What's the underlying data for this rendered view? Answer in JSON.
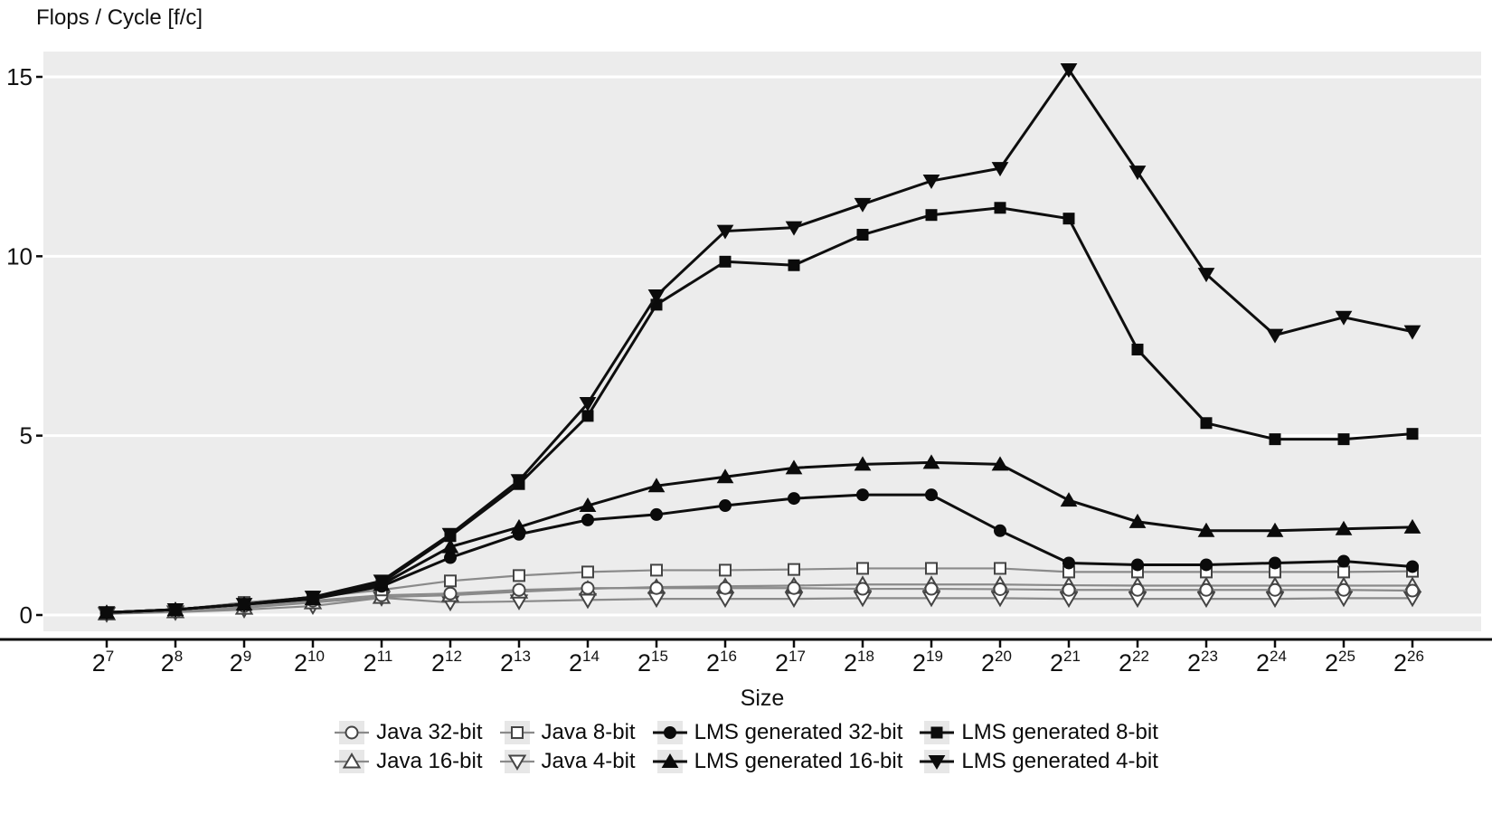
{
  "title": "Flops / Cycle [f/c]",
  "chart_data": {
    "type": "line",
    "title": "Flops / Cycle [f/c]",
    "ylabel": "Flops / Cycle [f/c]",
    "xlabel": "Size",
    "x_tick_base": "2",
    "x_exponents": [
      7,
      8,
      9,
      10,
      11,
      12,
      13,
      14,
      15,
      16,
      17,
      18,
      19,
      20,
      21,
      22,
      23,
      24,
      25,
      26
    ],
    "y_gridlines": [
      0,
      5,
      10,
      15
    ],
    "ylim": [
      0,
      15.7
    ],
    "grid": "white horizontal gridlines on light gray panel",
    "legend_position": "bottom, two centered rows",
    "series": [
      {
        "name": "Java 32-bit",
        "marker": "circle",
        "filled": false,
        "values": [
          0.05,
          0.1,
          0.25,
          0.4,
          0.55,
          0.6,
          0.7,
          0.75,
          0.75,
          0.75,
          0.75,
          0.73,
          0.73,
          0.72,
          0.7,
          0.7,
          0.7,
          0.7,
          0.7,
          0.68
        ]
      },
      {
        "name": "Java 8-bit",
        "marker": "square",
        "filled": false,
        "values": [
          0.05,
          0.15,
          0.35,
          0.5,
          0.7,
          0.95,
          1.1,
          1.2,
          1.25,
          1.25,
          1.27,
          1.3,
          1.3,
          1.3,
          1.2,
          1.2,
          1.2,
          1.2,
          1.2,
          1.22
        ]
      },
      {
        "name": "Java 16-bit",
        "marker": "triangle-up",
        "filled": false,
        "values": [
          0.04,
          0.1,
          0.2,
          0.35,
          0.5,
          0.55,
          0.65,
          0.73,
          0.78,
          0.8,
          0.82,
          0.85,
          0.85,
          0.85,
          0.83,
          0.82,
          0.82,
          0.82,
          0.82,
          0.82
        ]
      },
      {
        "name": "Java 4-bit",
        "marker": "triangle-down",
        "filled": false,
        "values": [
          0.03,
          0.08,
          0.15,
          0.25,
          0.48,
          0.35,
          0.38,
          0.42,
          0.45,
          0.45,
          0.45,
          0.47,
          0.47,
          0.47,
          0.45,
          0.45,
          0.45,
          0.45,
          0.47,
          0.47
        ]
      },
      {
        "name": "LMS generated 32-bit",
        "marker": "circle",
        "filled": true,
        "values": [
          0.07,
          0.15,
          0.3,
          0.45,
          0.8,
          1.6,
          2.25,
          2.65,
          2.8,
          3.05,
          3.25,
          3.35,
          3.35,
          2.35,
          1.45,
          1.4,
          1.4,
          1.45,
          1.5,
          1.35
        ]
      },
      {
        "name": "LMS generated 16-bit",
        "marker": "triangle-up",
        "filled": true,
        "values": [
          0.07,
          0.15,
          0.3,
          0.45,
          0.85,
          1.9,
          2.45,
          3.05,
          3.6,
          3.85,
          4.1,
          4.2,
          4.25,
          4.2,
          3.2,
          2.6,
          2.35,
          2.35,
          2.4,
          2.45
        ]
      },
      {
        "name": "LMS generated 8-bit",
        "marker": "square",
        "filled": true,
        "values": [
          0.07,
          0.15,
          0.3,
          0.5,
          0.9,
          2.2,
          3.65,
          5.55,
          8.65,
          9.85,
          9.75,
          10.6,
          11.15,
          11.35,
          11.05,
          7.4,
          5.35,
          4.9,
          4.9,
          5.05
        ]
      },
      {
        "name": "LMS generated 4-bit",
        "marker": "triangle-down",
        "filled": true,
        "values": [
          0.07,
          0.15,
          0.3,
          0.5,
          0.95,
          2.25,
          3.75,
          5.9,
          8.9,
          10.7,
          10.8,
          11.45,
          12.1,
          12.45,
          15.2,
          12.35,
          9.5,
          7.8,
          8.3,
          7.9
        ]
      }
    ],
    "draw_order": [
      "Java 4-bit",
      "Java 16-bit",
      "Java 32-bit",
      "Java 8-bit",
      "LMS generated 32-bit",
      "LMS generated 16-bit",
      "LMS generated 8-bit",
      "LMS generated 4-bit"
    ],
    "legend_rows": [
      [
        "Java 32-bit",
        "Java 8-bit",
        "LMS generated 32-bit",
        "LMS generated 8-bit"
      ],
      [
        "Java 16-bit",
        "Java 4-bit",
        "LMS generated 16-bit",
        "LMS generated 4-bit"
      ]
    ],
    "colors": {
      "panel_bg": "#ececec",
      "gridline": "#ffffff",
      "axis": "#0b0b0b",
      "lms_line": "#0e0e0e",
      "lms_marker": "#0b0b0b",
      "java_line": "#8a8a8a",
      "java_marker_stroke": "#444444",
      "java_marker_fill": "#ffffff",
      "legend_chip": "#e7e7e7",
      "text": "#111111"
    }
  }
}
